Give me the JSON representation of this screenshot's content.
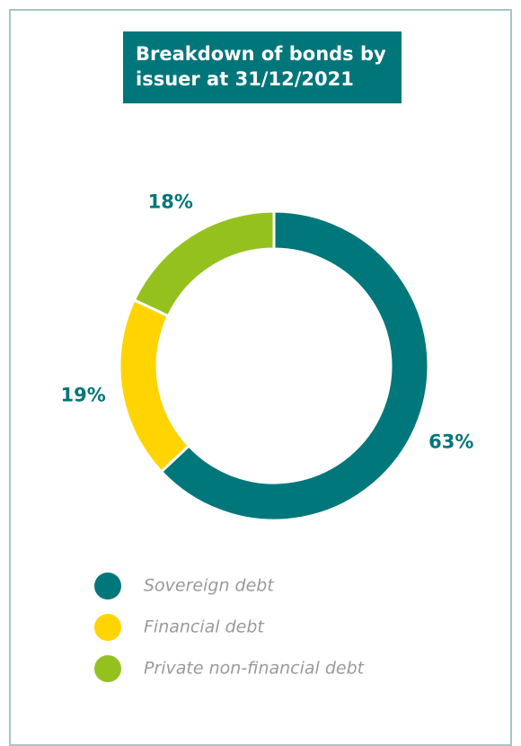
{
  "chart_data": {
    "type": "donut",
    "title": "Breakdown of bonds by issuer at 31/12/2021",
    "categories": [
      "Sovereign debt",
      "Financial debt",
      "Private non-financial debt"
    ],
    "values": [
      63,
      19,
      18
    ],
    "value_labels": [
      "63%",
      "19%",
      "18%"
    ],
    "colors": [
      "#00777b",
      "#ffd400",
      "#95c11f"
    ]
  }
}
